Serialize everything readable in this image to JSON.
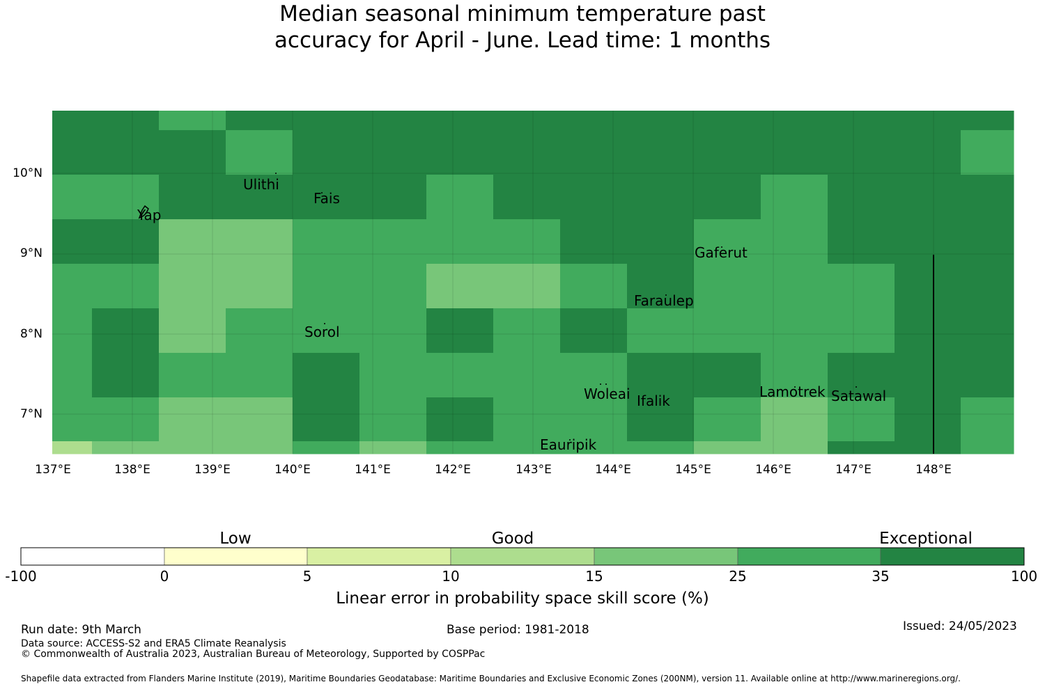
{
  "title_line1": "Median seasonal minimum temperature past",
  "title_line2": "accuracy for April - June. Lead time: 1 months",
  "map": {
    "lon_labels": [
      "137°E",
      "138°E",
      "139°E",
      "140°E",
      "141°E",
      "142°E",
      "143°E",
      "144°E",
      "145°E",
      "146°E",
      "147°E",
      "148°E"
    ],
    "lat_labels": [
      "10°N",
      "9°N",
      "8°N",
      "7°N"
    ],
    "places": {
      "ulithi": "Ulithi",
      "fais": "Fais",
      "yap": "Yap",
      "gaferut": "Gaferut",
      "faraulep": "Faraulep",
      "sorol": "Sorol",
      "woleai": "Woleai",
      "ifalik": "Ifalik",
      "lamotrek": "Lamotrek",
      "satawal": "Satawal",
      "eauripik": "Eauripik"
    },
    "colors": {
      "c0": "#ffffff",
      "c1": "#ffffcc",
      "c2": "#d9f0a3",
      "c3": "#addd8e",
      "c4": "#78c679",
      "c5": "#41ab5d",
      "c6": "#238443"
    }
  },
  "colorbar": {
    "categories": [
      "Low",
      "Good",
      "Exceptional"
    ],
    "ticks": [
      "-100",
      "0",
      "5",
      "10",
      "15",
      "25",
      "35",
      "100"
    ],
    "label": "Linear error in probability space skill score (%)"
  },
  "footer": {
    "run_date": "Run date: 9th March",
    "base_period": "Base period: 1981-2018",
    "issued": "Issued: 24/05/2023",
    "data_source": "Data source: ACCESS-S2 and ERA5 Climate Reanalysis",
    "copyright": "© Commonwealth of Australia 2023, Australian Bureau of Meteorology, Supported by COSPPac",
    "shapefile": "Shapefile data extracted from Flanders Marine Institute (2019), Maritime Boundaries Geodatabase: Maritime Boundaries and Exclusive Economic Zones (200NM), version 11. Available online at http://www.marineregions.org/."
  }
}
